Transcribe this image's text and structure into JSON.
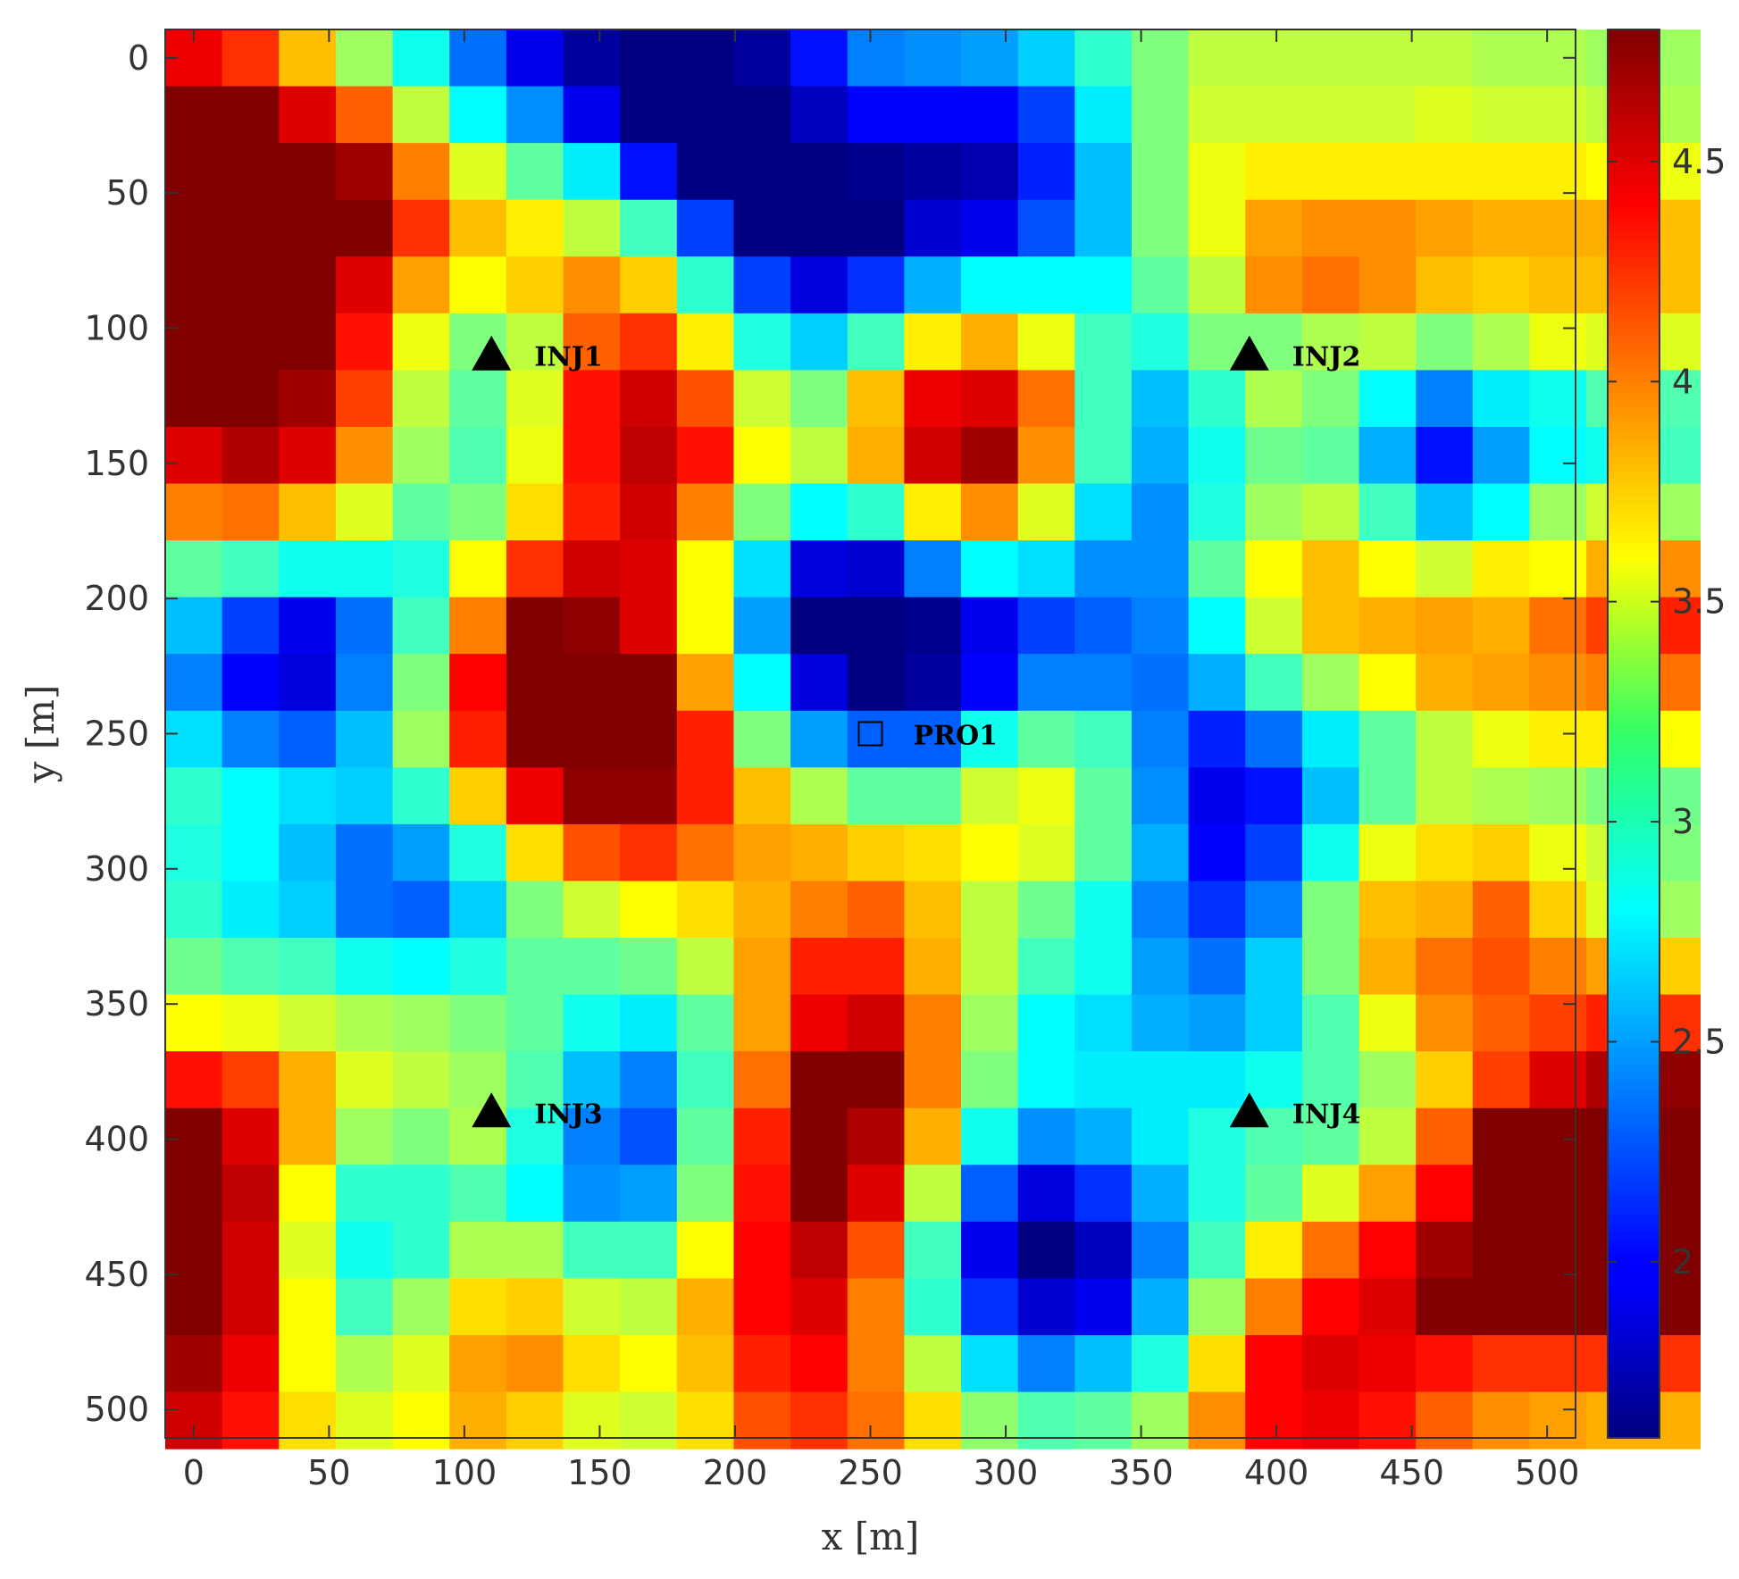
{
  "chart_data": {
    "type": "heatmap",
    "title": "",
    "xlabel": "x [m]",
    "ylabel": "y [m]",
    "xlim": [
      -10.5,
      510.5
    ],
    "ylim": [
      -10.5,
      510.5
    ],
    "y_axis_direction": "down",
    "grid": false,
    "cell_size": 21,
    "x_ticks": [
      "0",
      "50",
      "100",
      "150",
      "200",
      "250",
      "300",
      "350",
      "400",
      "450",
      "500"
    ],
    "y_ticks": [
      "0",
      "50",
      "100",
      "150",
      "200",
      "250",
      "300",
      "350",
      "400",
      "450",
      "500"
    ],
    "colormap": "jet",
    "color_range": [
      1.6,
      4.8
    ],
    "colorbar": {
      "position": "right",
      "ticks": [
        "2",
        "2.5",
        "3",
        "3.5",
        "4",
        "4.5"
      ]
    },
    "z": [
      [
        4.45,
        4.25,
        3.8,
        3.3,
        2.85,
        2.35,
        1.95,
        1.7,
        1.6,
        1.6,
        1.7,
        2.05,
        2.4,
        2.45,
        2.5,
        2.65,
        2.95,
        3.2,
        3.4,
        3.4,
        3.4,
        3.4,
        3.4,
        3.35,
        3.35,
        3.3,
        3.3
      ],
      [
        4.8,
        4.8,
        4.5,
        4.1,
        3.4,
        2.8,
        2.45,
        1.95,
        1.6,
        1.6,
        1.6,
        1.8,
        2.0,
        2.0,
        2.0,
        2.2,
        2.75,
        3.2,
        3.45,
        3.45,
        3.45,
        3.45,
        3.5,
        3.45,
        3.45,
        3.4,
        3.35
      ],
      [
        4.8,
        4.8,
        4.8,
        4.7,
        4.0,
        3.5,
        3.1,
        2.75,
        2.05,
        1.6,
        1.55,
        1.55,
        1.65,
        1.7,
        1.75,
        2.1,
        2.6,
        3.2,
        3.55,
        3.65,
        3.65,
        3.65,
        3.65,
        3.65,
        3.65,
        3.6,
        3.55
      ],
      [
        4.8,
        4.8,
        4.8,
        4.8,
        4.25,
        3.8,
        3.65,
        3.4,
        3.0,
        2.2,
        1.6,
        1.55,
        1.6,
        1.85,
        1.95,
        2.25,
        2.6,
        3.2,
        3.55,
        3.9,
        3.95,
        3.95,
        3.9,
        3.85,
        3.85,
        3.85,
        3.8
      ],
      [
        4.8,
        4.8,
        4.8,
        4.5,
        3.9,
        3.6,
        3.75,
        3.95,
        3.75,
        2.95,
        2.2,
        1.9,
        2.15,
        2.55,
        2.8,
        2.8,
        2.8,
        3.1,
        3.4,
        3.95,
        4.05,
        3.95,
        3.8,
        3.75,
        3.8,
        3.8,
        3.8
      ],
      [
        4.8,
        4.8,
        4.8,
        4.35,
        3.55,
        3.2,
        3.4,
        4.1,
        4.25,
        3.65,
        2.9,
        2.65,
        3.0,
        3.65,
        3.85,
        3.55,
        3.0,
        2.9,
        3.2,
        3.2,
        3.35,
        3.4,
        3.2,
        3.35,
        3.55,
        3.5,
        3.5
      ],
      [
        4.8,
        4.8,
        4.7,
        4.2,
        3.4,
        3.1,
        3.5,
        4.35,
        4.55,
        4.15,
        3.45,
        3.2,
        3.8,
        4.45,
        4.5,
        4.05,
        3.0,
        2.6,
        2.95,
        3.35,
        3.2,
        2.8,
        2.4,
        2.75,
        2.85,
        3.05,
        3.05
      ],
      [
        4.5,
        4.65,
        4.5,
        3.95,
        3.3,
        3.05,
        3.55,
        4.35,
        4.6,
        4.35,
        3.6,
        3.4,
        3.85,
        4.55,
        4.7,
        3.95,
        3.0,
        2.55,
        2.85,
        3.15,
        3.1,
        2.55,
        2.05,
        2.5,
        2.8,
        2.85,
        3.0
      ],
      [
        4.0,
        4.05,
        3.8,
        3.5,
        3.1,
        3.2,
        3.7,
        4.3,
        4.55,
        4.0,
        3.2,
        2.8,
        2.95,
        3.65,
        3.95,
        3.5,
        2.7,
        2.45,
        2.9,
        3.3,
        3.4,
        3.0,
        2.6,
        2.8,
        3.3,
        3.45,
        3.3
      ],
      [
        3.1,
        3.0,
        2.85,
        2.85,
        2.9,
        3.6,
        4.25,
        4.55,
        4.5,
        3.6,
        2.7,
        1.9,
        1.85,
        2.4,
        2.8,
        2.7,
        2.45,
        2.45,
        3.1,
        3.6,
        3.8,
        3.6,
        3.45,
        3.65,
        3.6,
        3.85,
        3.95
      ],
      [
        2.6,
        2.2,
        1.95,
        2.35,
        3.0,
        4.0,
        4.8,
        4.75,
        4.5,
        3.6,
        2.5,
        1.6,
        1.6,
        1.65,
        1.95,
        2.2,
        2.3,
        2.4,
        2.8,
        3.45,
        3.8,
        3.85,
        3.9,
        3.85,
        4.05,
        4.2,
        4.3
      ],
      [
        2.4,
        2.0,
        1.9,
        2.4,
        3.2,
        4.4,
        4.8,
        4.8,
        4.8,
        3.9,
        2.8,
        1.9,
        1.6,
        1.7,
        2.0,
        2.4,
        2.4,
        2.35,
        2.55,
        3.0,
        3.3,
        3.6,
        3.85,
        3.9,
        3.95,
        4.0,
        4.05
      ],
      [
        2.7,
        2.4,
        2.3,
        2.6,
        3.3,
        4.3,
        4.8,
        4.8,
        4.8,
        4.3,
        3.2,
        2.5,
        2.3,
        2.3,
        2.85,
        3.1,
        3.0,
        2.4,
        2.1,
        2.35,
        2.75,
        3.1,
        3.4,
        3.55,
        3.65,
        3.65,
        3.6
      ],
      [
        2.95,
        2.8,
        2.7,
        2.65,
        2.95,
        3.75,
        4.45,
        4.75,
        4.75,
        4.3,
        3.8,
        3.35,
        3.1,
        3.1,
        3.45,
        3.55,
        3.1,
        2.45,
        1.95,
        2.05,
        2.6,
        3.1,
        3.4,
        3.35,
        3.3,
        3.2,
        3.15
      ],
      [
        2.9,
        2.8,
        2.6,
        2.35,
        2.5,
        2.9,
        3.7,
        4.15,
        4.25,
        4.05,
        3.9,
        3.85,
        3.75,
        3.7,
        3.6,
        3.5,
        3.1,
        2.55,
        2.0,
        2.2,
        2.85,
        3.55,
        3.7,
        3.75,
        3.55,
        3.45,
        3.2
      ],
      [
        2.95,
        2.75,
        2.65,
        2.35,
        2.3,
        2.65,
        3.2,
        3.45,
        3.6,
        3.7,
        3.85,
        4.0,
        4.1,
        3.8,
        3.4,
        3.15,
        2.85,
        2.4,
        2.15,
        2.4,
        3.2,
        3.8,
        3.85,
        4.1,
        3.75,
        3.5,
        3.3
      ],
      [
        3.15,
        3.05,
        3.0,
        2.85,
        2.8,
        2.9,
        3.1,
        3.1,
        3.15,
        3.4,
        3.9,
        4.3,
        4.3,
        3.85,
        3.4,
        3.0,
        2.85,
        2.5,
        2.35,
        2.65,
        3.2,
        3.85,
        4.05,
        4.15,
        4.0,
        3.9,
        3.75
      ],
      [
        3.6,
        3.55,
        3.45,
        3.35,
        3.3,
        3.2,
        3.1,
        2.85,
        2.75,
        3.1,
        3.9,
        4.45,
        4.55,
        4.0,
        3.3,
        2.8,
        2.7,
        2.55,
        2.5,
        2.65,
        3.05,
        3.55,
        3.95,
        4.1,
        4.2,
        4.3,
        4.25
      ],
      [
        4.35,
        4.2,
        3.85,
        3.5,
        3.4,
        3.3,
        3.05,
        2.6,
        2.4,
        3.0,
        4.05,
        4.8,
        4.8,
        4.0,
        3.2,
        2.8,
        2.75,
        2.75,
        2.75,
        2.85,
        3.05,
        3.3,
        3.75,
        4.2,
        4.5,
        4.65,
        4.75
      ],
      [
        4.8,
        4.5,
        3.85,
        3.3,
        3.2,
        3.35,
        2.9,
        2.4,
        2.25,
        3.1,
        4.3,
        4.8,
        4.65,
        3.85,
        2.85,
        2.45,
        2.55,
        2.75,
        2.9,
        3.05,
        3.1,
        3.4,
        4.1,
        4.8,
        4.8,
        4.8,
        4.8
      ],
      [
        4.8,
        4.6,
        3.6,
        2.95,
        2.95,
        3.05,
        2.8,
        2.45,
        2.5,
        3.2,
        4.35,
        4.8,
        4.5,
        3.4,
        2.3,
        1.9,
        2.15,
        2.55,
        2.9,
        3.1,
        3.5,
        3.9,
        4.4,
        4.8,
        4.8,
        4.8,
        4.8
      ],
      [
        4.8,
        4.55,
        3.5,
        2.85,
        2.95,
        3.35,
        3.35,
        3.0,
        3.0,
        3.6,
        4.4,
        4.6,
        4.15,
        3.0,
        1.95,
        1.6,
        1.8,
        2.4,
        3.0,
        3.65,
        4.05,
        4.4,
        4.7,
        4.8,
        4.8,
        4.8,
        4.8
      ],
      [
        4.8,
        4.55,
        3.6,
        3.0,
        3.3,
        3.7,
        3.75,
        3.45,
        3.4,
        3.85,
        4.4,
        4.5,
        4.0,
        2.95,
        2.15,
        1.85,
        1.95,
        2.55,
        3.3,
        4.0,
        4.4,
        4.5,
        4.8,
        4.8,
        4.8,
        4.8,
        4.8
      ],
      [
        4.7,
        4.45,
        3.6,
        3.35,
        3.5,
        3.9,
        3.95,
        3.7,
        3.6,
        3.8,
        4.3,
        4.4,
        4.0,
        3.4,
        2.7,
        2.4,
        2.6,
        2.9,
        3.7,
        4.4,
        4.5,
        4.45,
        4.35,
        4.25,
        4.25,
        4.25,
        4.25
      ],
      [
        4.55,
        4.35,
        3.7,
        3.5,
        3.6,
        3.85,
        3.75,
        3.5,
        3.45,
        3.7,
        4.15,
        4.25,
        4.05,
        3.7,
        3.25,
        3.05,
        3.1,
        3.3,
        3.95,
        4.4,
        4.45,
        4.35,
        4.1,
        3.95,
        3.9,
        3.85,
        3.85
      ]
    ],
    "annotations": [
      {
        "label": "INJ1",
        "marker": "triangle",
        "x": 110,
        "y": 110
      },
      {
        "label": "INJ2",
        "marker": "triangle",
        "x": 390,
        "y": 110
      },
      {
        "label": "INJ3",
        "marker": "triangle",
        "x": 110,
        "y": 390
      },
      {
        "label": "INJ4",
        "marker": "triangle",
        "x": 390,
        "y": 390
      },
      {
        "label": "PRO1",
        "marker": "square",
        "x": 250,
        "y": 250
      }
    ]
  }
}
